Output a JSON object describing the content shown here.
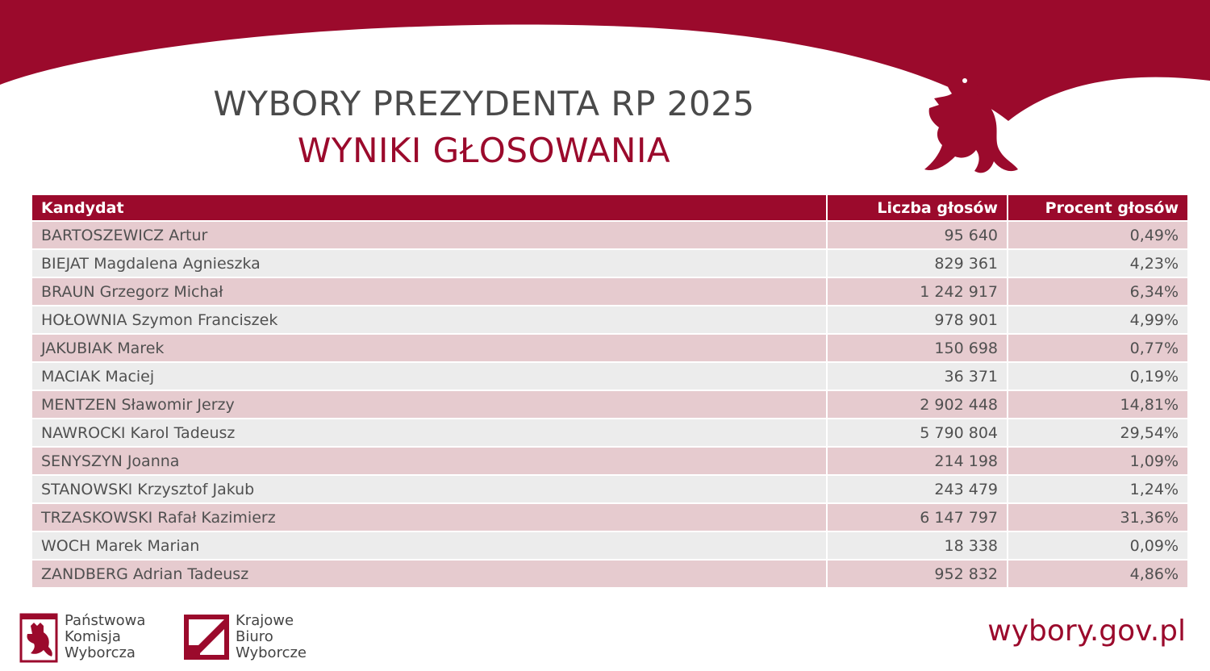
{
  "title": "WYBORY PREZYDENTA RP 2025",
  "subtitle": "WYNIKI GŁOSOWANIA",
  "colors": {
    "accent": "#9b0a2c",
    "row_odd": "#e6cbcf",
    "row_even": "#ececec"
  },
  "table": {
    "headers": [
      "Kandydat",
      "Liczba głosów",
      "Procent głosów"
    ],
    "rows": [
      {
        "candidate": "BARTOSZEWICZ Artur",
        "votes": "95 640",
        "percent": "0,49%"
      },
      {
        "candidate": "BIEJAT Magdalena Agnieszka",
        "votes": "829 361",
        "percent": "4,23%"
      },
      {
        "candidate": "BRAUN Grzegorz Michał",
        "votes": "1 242 917",
        "percent": "6,34%"
      },
      {
        "candidate": "HOŁOWNIA Szymon Franciszek",
        "votes": "978 901",
        "percent": "4,99%"
      },
      {
        "candidate": "JAKUBIAK Marek",
        "votes": "150 698",
        "percent": "0,77%"
      },
      {
        "candidate": "MACIAK Maciej",
        "votes": "36 371",
        "percent": "0,19%"
      },
      {
        "candidate": "MENTZEN Sławomir Jerzy",
        "votes": "2 902 448",
        "percent": "14,81%"
      },
      {
        "candidate": "NAWROCKI Karol Tadeusz",
        "votes": "5 790 804",
        "percent": "29,54%"
      },
      {
        "candidate": "SENYSZYN Joanna",
        "votes": "214 198",
        "percent": "1,09%"
      },
      {
        "candidate": "STANOWSKI Krzysztof Jakub",
        "votes": "243 479",
        "percent": "1,24%"
      },
      {
        "candidate": "TRZASKOWSKI Rafał Kazimierz",
        "votes": "6 147 797",
        "percent": "31,36%"
      },
      {
        "candidate": "WOCH Marek Marian",
        "votes": "18 338",
        "percent": "0,09%"
      },
      {
        "candidate": "ZANDBERG Adrian Tadeusz",
        "votes": "952 832",
        "percent": "4,86%"
      }
    ]
  },
  "footer": {
    "pkw": {
      "icon": "eagle-emblem-icon",
      "lines": [
        "Państwowa",
        "Komisja",
        "Wyborcza"
      ]
    },
    "kbw": {
      "icon": "kbw-square-logo-icon",
      "lines": [
        "Krajowe",
        "Biuro",
        "Wyborcze"
      ]
    },
    "url": "wybory.gov.pl"
  }
}
